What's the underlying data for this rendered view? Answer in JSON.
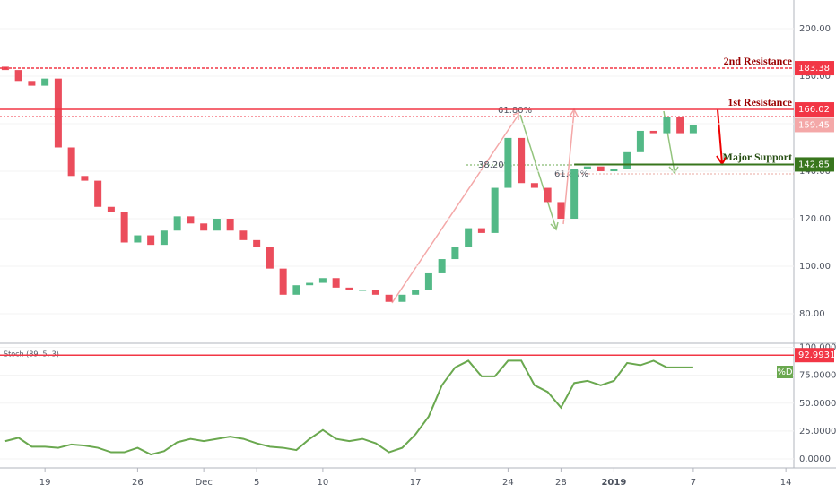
{
  "chart_data": {
    "type": "candlestick",
    "x": [
      -3,
      -2,
      -1,
      0,
      1,
      2,
      3,
      4,
      5,
      6,
      7,
      8,
      9,
      10,
      11,
      12,
      13,
      14,
      15,
      16,
      17,
      18,
      19,
      20,
      21,
      22,
      23,
      24,
      25,
      26,
      27,
      28,
      29,
      30,
      31,
      32,
      33,
      34,
      35,
      36,
      37,
      38,
      39,
      40,
      41,
      42,
      43,
      44,
      45,
      46,
      47,
      48,
      49
    ],
    "open": [
      184,
      182.6,
      178,
      176,
      179,
      150,
      138,
      136,
      125,
      123,
      110,
      113,
      109,
      115,
      121,
      118,
      115,
      120,
      115,
      111,
      108,
      99,
      88,
      92,
      93,
      95,
      91,
      90,
      90,
      88,
      85,
      88,
      90,
      97,
      103,
      108,
      116,
      114,
      133,
      154,
      135,
      133,
      127,
      120,
      141,
      142,
      140,
      141,
      148,
      157,
      156,
      163,
      156
    ],
    "close": [
      182.6,
      178,
      176,
      179,
      150,
      138,
      136,
      125,
      123,
      110,
      113,
      109,
      115,
      121,
      118,
      115,
      120,
      115,
      111,
      108,
      99,
      88,
      92,
      93,
      95,
      91,
      90,
      90,
      88,
      85,
      88,
      90,
      97,
      103,
      108,
      116,
      114,
      133,
      154,
      135,
      133,
      127,
      120,
      141,
      142,
      140,
      141,
      148,
      157,
      156,
      163,
      156,
      159.45
    ],
    "up_color": "#53b987",
    "down_color": "#eb4d5c",
    "xlim": [
      -3.4,
      56.6
    ],
    "xticks": [
      {
        "value": 0,
        "label": "19"
      },
      {
        "value": 7,
        "label": "26"
      },
      {
        "value": 12,
        "label": "Dec"
      },
      {
        "value": 16,
        "label": "5"
      },
      {
        "value": 21,
        "label": "10"
      },
      {
        "value": 28,
        "label": "17"
      },
      {
        "value": 35,
        "label": "24"
      },
      {
        "value": 39,
        "label": "28"
      },
      {
        "value": 43,
        "label": "2019"
      },
      {
        "value": 49,
        "label": "7"
      },
      {
        "value": 56,
        "label": "14"
      }
    ],
    "ylim": [
      70,
      210
    ],
    "yticks": [
      {
        "value": 80,
        "label": "80.00"
      },
      {
        "value": 100,
        "label": "100.00"
      },
      {
        "value": 120,
        "label": "120.00"
      },
      {
        "value": 140,
        "label": "140.00"
      },
      {
        "value": 160,
        "label": "160.00"
      },
      {
        "value": 180,
        "label": "180.00"
      },
      {
        "value": 200,
        "label": "200.00"
      }
    ],
    "levels": [
      {
        "name": "2nd Resistance",
        "value": 183.38,
        "color": "#f23645"
      },
      {
        "name": "1st Resistance",
        "value": 166.02,
        "color": "#f23645"
      },
      {
        "name": "Major Support",
        "value": 142.85,
        "color": "#38761d"
      }
    ],
    "current_price": 159.45,
    "fib_labels": [
      "38.20%",
      "61.80%",
      "61.80%"
    ],
    "indicator": {
      "title": "Stoch (89, 5, 3)",
      "legend": "%D",
      "color": "#6aa84f",
      "values": [
        16,
        19,
        11,
        11,
        10,
        13,
        12,
        10,
        6,
        6,
        10,
        4,
        7,
        15,
        18,
        16,
        18,
        20,
        18,
        14,
        11,
        10,
        8,
        18,
        26,
        18,
        16,
        18,
        14,
        6,
        10,
        22,
        38,
        66,
        82,
        88,
        74,
        74,
        88,
        88,
        66,
        60,
        46,
        68,
        70,
        66,
        70,
        86,
        84,
        88,
        82,
        82,
        82
      ],
      "ylim": [
        -6,
        104
      ],
      "yticks": [
        {
          "value": 0,
          "label": "0.0000"
        },
        {
          "value": 25,
          "label": "25.0000"
        },
        {
          "value": 50,
          "label": "50.0000"
        },
        {
          "value": 75,
          "label": "75.0000"
        },
        {
          "value": 100,
          "label": "100.0000"
        }
      ],
      "level": 92.9931
    }
  }
}
